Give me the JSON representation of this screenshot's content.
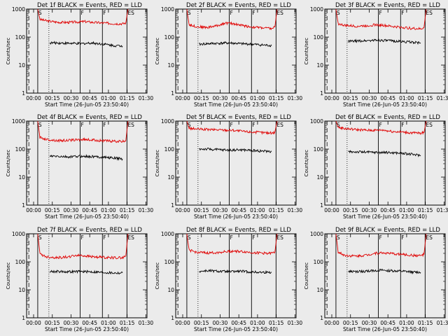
{
  "figure": {
    "background": "#ebebeb",
    "event_color": "#000000",
    "lld_color": "#e00000"
  },
  "chart_data": [
    {
      "type": "line",
      "title": "Det 1f BLACK = Events, RED = LLD",
      "xlabel": "Start Time (26-Jun-05 23:50:40)",
      "ylabel": "Counts/sec",
      "x_ticks": [
        "00:00",
        "00:15",
        "00:30",
        "00:45",
        "01:00",
        "01:15",
        "01:30"
      ],
      "y_ticks": [
        "1",
        "10",
        "100",
        "1000"
      ],
      "y_scale": "log",
      "ylim": [
        1,
        1000
      ],
      "x_range_min": [
        0,
        100
      ],
      "markers": [
        "S",
        "F",
        "F",
        "ES"
      ],
      "series": [
        {
          "color": "#e00000",
          "x": [
            2,
            4,
            10,
            20,
            30,
            36,
            44,
            52,
            60,
            70,
            78,
            81,
            83
          ],
          "y": [
            1000,
            430,
            380,
            340,
            335,
            345,
            360,
            335,
            320,
            305,
            300,
            320,
            1000
          ]
        },
        {
          "color": "#000000",
          "x": [
            13,
            20,
            30,
            40,
            50,
            60,
            70,
            78
          ],
          "y": [
            62,
            62,
            60,
            58,
            62,
            57,
            50,
            48
          ]
        }
      ]
    },
    {
      "type": "line",
      "title": "Det 2f BLACK = Events, RED = LLD",
      "xlabel": "Start Time (26-Jun-05 23:50:40)",
      "ylabel": "Counts/sec",
      "x_ticks": [
        "00:00",
        "00:15",
        "00:30",
        "00:45",
        "01:00",
        "01:15",
        "01:30"
      ],
      "y_ticks": [
        "1",
        "10",
        "100",
        "1000"
      ],
      "y_scale": "log",
      "ylim": [
        1,
        1000
      ],
      "x_range_min": [
        0,
        100
      ],
      "markers": [
        "S",
        "F",
        "F",
        "ES"
      ],
      "series": [
        {
          "color": "#e00000",
          "x": [
            2,
            4,
            10,
            20,
            30,
            36,
            44,
            52,
            60,
            70,
            78,
            81,
            83
          ],
          "y": [
            1000,
            280,
            240,
            220,
            260,
            320,
            300,
            260,
            230,
            215,
            200,
            230,
            1000
          ]
        },
        {
          "color": "#000000",
          "x": [
            13,
            20,
            30,
            40,
            50,
            60,
            70,
            78
          ],
          "y": [
            55,
            58,
            60,
            62,
            58,
            56,
            52,
            50
          ]
        }
      ]
    },
    {
      "type": "line",
      "title": "Det 3f BLACK = Events, RED = LLD",
      "xlabel": "Start Time (26-Jun-05 23:50:40)",
      "ylabel": "Counts/sec",
      "x_ticks": [
        "00:00",
        "00:15",
        "00:30",
        "00:45",
        "01:00",
        "01:15",
        "01:30"
      ],
      "y_ticks": [
        "1",
        "10",
        "100",
        "1000"
      ],
      "y_scale": "log",
      "ylim": [
        1,
        1000
      ],
      "x_range_min": [
        0,
        100
      ],
      "markers": [
        "S",
        "F",
        "F",
        "ES"
      ],
      "series": [
        {
          "color": "#e00000",
          "x": [
            2,
            4,
            10,
            20,
            30,
            36,
            44,
            52,
            60,
            70,
            78,
            81,
            83
          ],
          "y": [
            1000,
            300,
            260,
            245,
            255,
            275,
            265,
            240,
            225,
            205,
            195,
            220,
            1000
          ]
        },
        {
          "color": "#000000",
          "x": [
            13,
            20,
            30,
            40,
            50,
            60,
            70,
            78
          ],
          "y": [
            70,
            72,
            75,
            78,
            74,
            70,
            66,
            62
          ]
        }
      ]
    },
    {
      "type": "line",
      "title": "Det 4f BLACK = Events, RED = LLD",
      "xlabel": "Start Time (26-Jun-05 23:50:40)",
      "ylabel": "Counts/sec",
      "x_ticks": [
        "00:00",
        "00:15",
        "00:30",
        "00:45",
        "01:00",
        "01:15",
        "01:30"
      ],
      "y_ticks": [
        "1",
        "10",
        "100",
        "1000"
      ],
      "y_scale": "log",
      "ylim": [
        1,
        1000
      ],
      "x_range_min": [
        0,
        100
      ],
      "markers": [
        "S",
        "F",
        "F",
        "ES"
      ],
      "series": [
        {
          "color": "#e00000",
          "x": [
            2,
            4,
            10,
            20,
            30,
            36,
            44,
            52,
            60,
            70,
            78,
            81,
            83
          ],
          "y": [
            1000,
            260,
            220,
            200,
            205,
            215,
            220,
            210,
            200,
            190,
            185,
            200,
            1000
          ]
        },
        {
          "color": "#000000",
          "x": [
            13,
            20,
            30,
            40,
            50,
            60,
            70,
            78
          ],
          "y": [
            55,
            55,
            52,
            56,
            54,
            52,
            48,
            45
          ]
        }
      ]
    },
    {
      "type": "line",
      "title": "Det 5f BLACK = Events, RED = LLD",
      "xlabel": "Start Time (26-Jun-05 23:50:40)",
      "ylabel": "Counts/sec",
      "x_ticks": [
        "00:00",
        "00:15",
        "00:30",
        "00:45",
        "01:00",
        "01:15",
        "01:30"
      ],
      "y_ticks": [
        "1",
        "10",
        "100",
        "1000"
      ],
      "y_scale": "log",
      "ylim": [
        1,
        1000
      ],
      "x_range_min": [
        0,
        100
      ],
      "markers": [
        "S",
        "F",
        "F",
        "ES"
      ],
      "series": [
        {
          "color": "#e00000",
          "x": [
            2,
            4,
            10,
            20,
            30,
            36,
            44,
            52,
            60,
            70,
            78,
            81,
            83
          ],
          "y": [
            1000,
            560,
            520,
            500,
            490,
            480,
            470,
            430,
            410,
            390,
            375,
            400,
            1000
          ]
        },
        {
          "color": "#000000",
          "x": [
            13,
            20,
            30,
            40,
            50,
            60,
            70,
            78
          ],
          "y": [
            100,
            100,
            95,
            92,
            94,
            90,
            85,
            82
          ]
        }
      ]
    },
    {
      "type": "line",
      "title": "Det 6f BLACK = Events, RED = LLD",
      "xlabel": "Start Time (26-Jun-05 23:50:40)",
      "ylabel": "Counts/sec",
      "x_ticks": [
        "00:00",
        "00:15",
        "00:30",
        "00:45",
        "01:00",
        "01:15",
        "01:30"
      ],
      "y_ticks": [
        "1",
        "10",
        "100",
        "1000"
      ],
      "y_scale": "log",
      "ylim": [
        1,
        1000
      ],
      "x_range_min": [
        0,
        100
      ],
      "markers": [
        "S",
        "F",
        "F",
        "ES"
      ],
      "series": [
        {
          "color": "#e00000",
          "x": [
            2,
            4,
            10,
            20,
            30,
            36,
            44,
            52,
            60,
            70,
            78,
            81,
            83
          ],
          "y": [
            1000,
            600,
            540,
            500,
            470,
            470,
            480,
            430,
            410,
            380,
            370,
            390,
            1000
          ]
        },
        {
          "color": "#000000",
          "x": [
            13,
            20,
            30,
            40,
            50,
            60,
            70,
            78
          ],
          "y": [
            80,
            80,
            78,
            76,
            75,
            72,
            65,
            60
          ]
        }
      ]
    },
    {
      "type": "line",
      "title": "Det 7f BLACK = Events, RED = LLD",
      "xlabel": "Start Time (26-Jun-05 23:50:40)",
      "ylabel": "Counts/sec",
      "x_ticks": [
        "00:00",
        "00:15",
        "00:30",
        "00:45",
        "01:00",
        "01:15",
        "01:30"
      ],
      "y_ticks": [
        "1",
        "10",
        "100",
        "1000"
      ],
      "y_scale": "log",
      "ylim": [
        1,
        1000
      ],
      "x_range_min": [
        0,
        100
      ],
      "markers": [
        "S",
        "F",
        "F",
        "ES"
      ],
      "series": [
        {
          "color": "#e00000",
          "x": [
            2,
            4,
            10,
            20,
            30,
            36,
            44,
            52,
            60,
            70,
            78,
            81,
            83
          ],
          "y": [
            1000,
            190,
            150,
            140,
            150,
            170,
            165,
            150,
            145,
            140,
            140,
            160,
            1000
          ]
        },
        {
          "color": "#000000",
          "x": [
            13,
            20,
            30,
            40,
            50,
            60,
            70,
            78
          ],
          "y": [
            45,
            45,
            44,
            45,
            44,
            42,
            40,
            40
          ]
        }
      ]
    },
    {
      "type": "line",
      "title": "Det 8f BLACK = Events, RED = LLD",
      "xlabel": "Start Time (26-Jun-05 23:50:40)",
      "ylabel": "Counts/sec",
      "x_ticks": [
        "00:00",
        "00:15",
        "00:30",
        "00:45",
        "01:00",
        "01:15",
        "01:30"
      ],
      "y_ticks": [
        "1",
        "10",
        "100",
        "1000"
      ],
      "y_scale": "log",
      "ylim": [
        1,
        1000
      ],
      "x_range_min": [
        0,
        100
      ],
      "markers": [
        "S",
        "F",
        "F",
        "ES"
      ],
      "series": [
        {
          "color": "#e00000",
          "x": [
            2,
            4,
            10,
            20,
            30,
            36,
            44,
            52,
            60,
            70,
            78,
            81,
            83
          ],
          "y": [
            1000,
            260,
            220,
            205,
            215,
            230,
            240,
            230,
            215,
            205,
            200,
            220,
            1000
          ]
        },
        {
          "color": "#000000",
          "x": [
            13,
            20,
            30,
            40,
            50,
            60,
            70,
            78
          ],
          "y": [
            45,
            48,
            46,
            44,
            46,
            43,
            42,
            42
          ]
        }
      ]
    },
    {
      "type": "line",
      "title": "Det 9f BLACK = Events, RED = LLD",
      "xlabel": "Start Time (26-Jun-05 23:50:40)",
      "ylabel": "Counts/sec",
      "x_ticks": [
        "00:00",
        "00:15",
        "00:30",
        "00:45",
        "01:00",
        "01:15",
        "01:30"
      ],
      "y_ticks": [
        "1",
        "10",
        "100",
        "1000"
      ],
      "y_scale": "log",
      "ylim": [
        1,
        1000
      ],
      "x_range_min": [
        0,
        100
      ],
      "markers": [
        "S",
        "F",
        "F",
        "ES"
      ],
      "series": [
        {
          "color": "#e00000",
          "x": [
            2,
            4,
            10,
            20,
            30,
            36,
            44,
            52,
            60,
            70,
            78,
            81,
            83
          ],
          "y": [
            1000,
            220,
            170,
            160,
            175,
            200,
            210,
            195,
            185,
            170,
            165,
            185,
            1000
          ]
        },
        {
          "color": "#000000",
          "x": [
            13,
            20,
            30,
            40,
            50,
            60,
            70,
            78
          ],
          "y": [
            45,
            44,
            46,
            50,
            48,
            46,
            43,
            42
          ]
        }
      ]
    }
  ]
}
